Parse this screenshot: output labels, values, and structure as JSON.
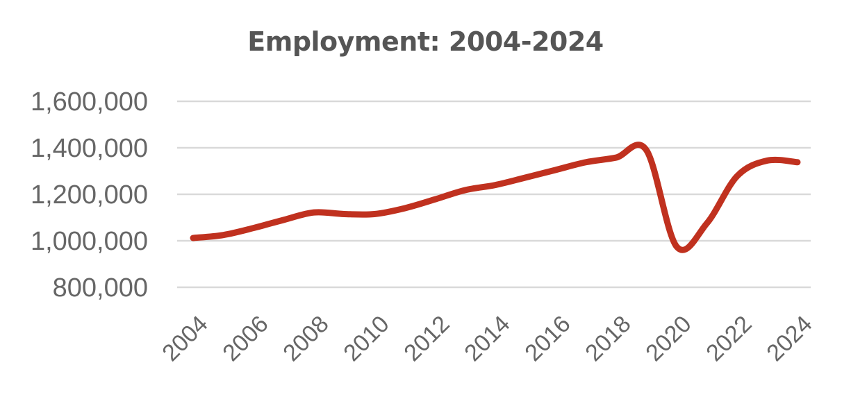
{
  "chart_data": {
    "type": "line",
    "title": "Employment: 2004-2024",
    "xlabel": "",
    "ylabel": "",
    "ylim": [
      800000,
      1600000
    ],
    "yticks": [
      800000,
      1000000,
      1200000,
      1400000,
      1600000
    ],
    "ytick_labels": [
      "800,000",
      "1,000,000",
      "1,200,000",
      "1,400,000",
      "1,600,000"
    ],
    "xticks": [
      2004,
      2006,
      2008,
      2010,
      2012,
      2014,
      2016,
      2018,
      2020,
      2022,
      2024
    ],
    "xtick_labels": [
      "2004",
      "2006",
      "2008",
      "2010",
      "2012",
      "2014",
      "2016",
      "2018",
      "2020",
      "2022",
      "2024"
    ],
    "grid": true,
    "legend": "none",
    "colors": {
      "line": "#c0311f",
      "grid": "#d9d9d9",
      "text": "#666666",
      "title": "#555555"
    },
    "series": [
      {
        "x": [
          2004,
          2005,
          2006,
          2007,
          2008,
          2009,
          2010,
          2011,
          2012,
          2013,
          2014,
          2015,
          2016,
          2017,
          2018,
          2019,
          2020,
          2021,
          2022,
          2023,
          2024
        ],
        "values": [
          1012000,
          1025000,
          1055000,
          1090000,
          1122000,
          1115000,
          1115000,
          1140000,
          1178000,
          1218000,
          1240000,
          1272000,
          1305000,
          1338000,
          1358000,
          1390000,
          975000,
          1075000,
          1278000,
          1345000,
          1338000
        ]
      }
    ]
  }
}
